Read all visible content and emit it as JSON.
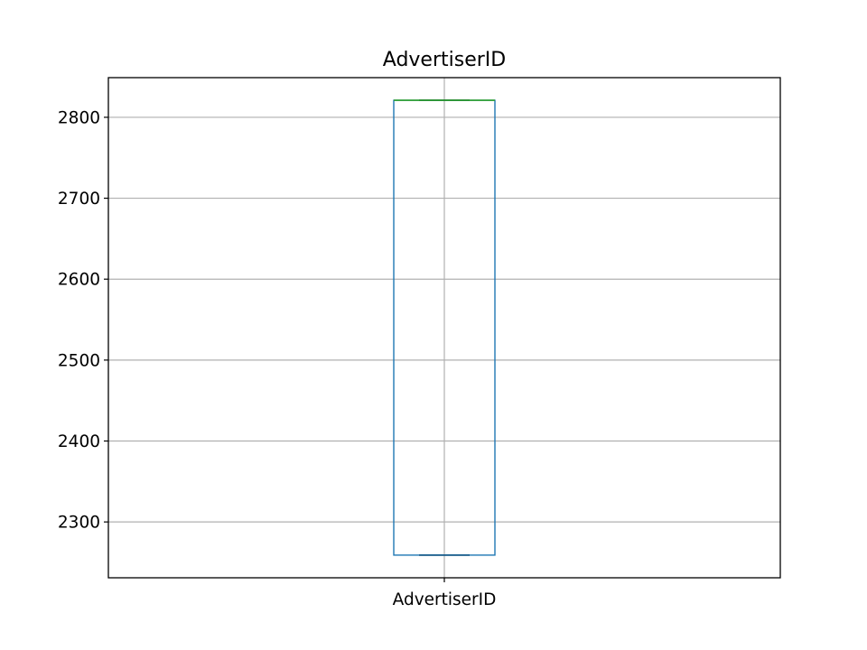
{
  "chart_data": {
    "type": "box",
    "title": "AdvertiserID",
    "xlabel": "",
    "ylabel": "",
    "categories": [
      "AdvertiserID"
    ],
    "boxes": [
      {
        "name": "AdvertiserID",
        "whisker_low": 2259,
        "q1": 2259,
        "median": 2821,
        "q3": 2821,
        "whisker_high": 2821
      }
    ],
    "y_ticks": [
      2300,
      2400,
      2500,
      2600,
      2700,
      2800
    ],
    "ylim": [
      2231,
      2849
    ],
    "grid": true,
    "colors": {
      "box": "#1f77b4",
      "median": "#2ca02c",
      "whisker": "#000000",
      "grid": "#b0b0b0",
      "axes": "#000000"
    }
  }
}
